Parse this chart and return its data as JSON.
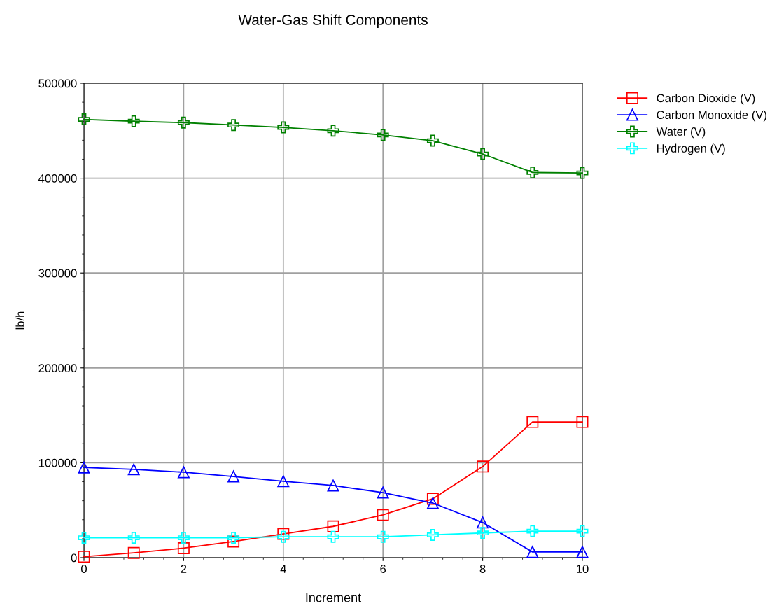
{
  "chart_data": {
    "type": "line",
    "title": "Water-Gas Shift Components",
    "xlabel": "Increment",
    "ylabel": "lb/h",
    "x": [
      0,
      1,
      2,
      3,
      4,
      5,
      6,
      7,
      8,
      9,
      10
    ],
    "series": [
      {
        "name": "Carbon Dioxide (V)",
        "color": "#ff0000",
        "marker": "square",
        "values": [
          1000,
          5000,
          10000,
          17000,
          25000,
          33000,
          45000,
          62000,
          96000,
          143000,
          143000
        ]
      },
      {
        "name": "Carbon Monoxide (V)",
        "color": "#0000ff",
        "marker": "triangle",
        "values": [
          95000,
          93000,
          90000,
          85500,
          80500,
          76000,
          68500,
          57500,
          37000,
          6000,
          6000
        ]
      },
      {
        "name": "Water (V)",
        "color": "#008000",
        "marker": "cross",
        "values": [
          462000,
          460000,
          458500,
          456000,
          453500,
          450000,
          445500,
          439500,
          425500,
          406000,
          405500
        ]
      },
      {
        "name": "Hydrogen (V)",
        "color": "#00ffff",
        "marker": "cross",
        "values": [
          21000,
          21000,
          21000,
          21000,
          22000,
          22000,
          22000,
          24000,
          26000,
          28000,
          28000
        ]
      }
    ],
    "xlim": [
      0,
      10
    ],
    "xticks": [
      0,
      2,
      4,
      6,
      8,
      10
    ],
    "ylim": [
      0,
      500000
    ],
    "yticks": [
      0,
      100000,
      200000,
      300000,
      400000,
      500000
    ],
    "grid": true,
    "legend": "right",
    "line_style": "solid"
  }
}
